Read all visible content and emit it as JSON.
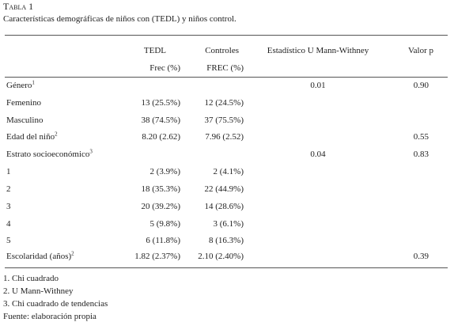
{
  "header": {
    "title": "Tabla 1",
    "caption": "Características demográficas de niños con (TEDL) y niños control."
  },
  "table": {
    "columns": [
      "TEDL",
      "Controles",
      "Estadístico U Mann-Withney",
      "Valor p"
    ],
    "subcolumns": [
      "Frec (%)",
      "FREC (%)"
    ],
    "rows": [
      {
        "label": "Género",
        "note": "1",
        "u": "0.01",
        "p": "0.90"
      },
      {
        "label": "Femenino",
        "tedl": "13 (25.5%)",
        "ctrl": "12 (24.5%)"
      },
      {
        "label": "Masculino",
        "tedl": "38 (74.5%)",
        "ctrl": "37 (75.5%)"
      },
      {
        "label": "Edad del niño",
        "note": "2",
        "tedl": "8.20 (2.62)",
        "ctrl": "7.96 (2.52)",
        "p": "0.55"
      },
      {
        "label": "Estrato socioeconómico",
        "note": "3",
        "u": "0.04",
        "p": "0.83"
      },
      {
        "label": "1",
        "tedl": "2 (3.9%)",
        "ctrl": "2 (4.1%)"
      },
      {
        "label": "2",
        "tedl": "18 (35.3%)",
        "ctrl": "22 (44.9%)"
      },
      {
        "label": "3",
        "tedl": "20 (39.2%)",
        "ctrl": "14 (28.6%)"
      },
      {
        "label": "4",
        "tedl": "5 (9.8%)",
        "ctrl": "3 (6.1%)"
      },
      {
        "label": "5",
        "tedl": "6 (11.8%)",
        "ctrl": "8 (16.3%)"
      },
      {
        "label": "Escolaridad (años)",
        "note": "2",
        "tedl": "1.82 (2.37%)",
        "ctrl": "2.10 (2.40%)",
        "p": "0.39"
      }
    ]
  },
  "footnotes": [
    "1. Chi cuadrado",
    "2. U Mann-Withney",
    "3. Chi cuadrado de tendencias",
    "Fuente: elaboración propia"
  ]
}
